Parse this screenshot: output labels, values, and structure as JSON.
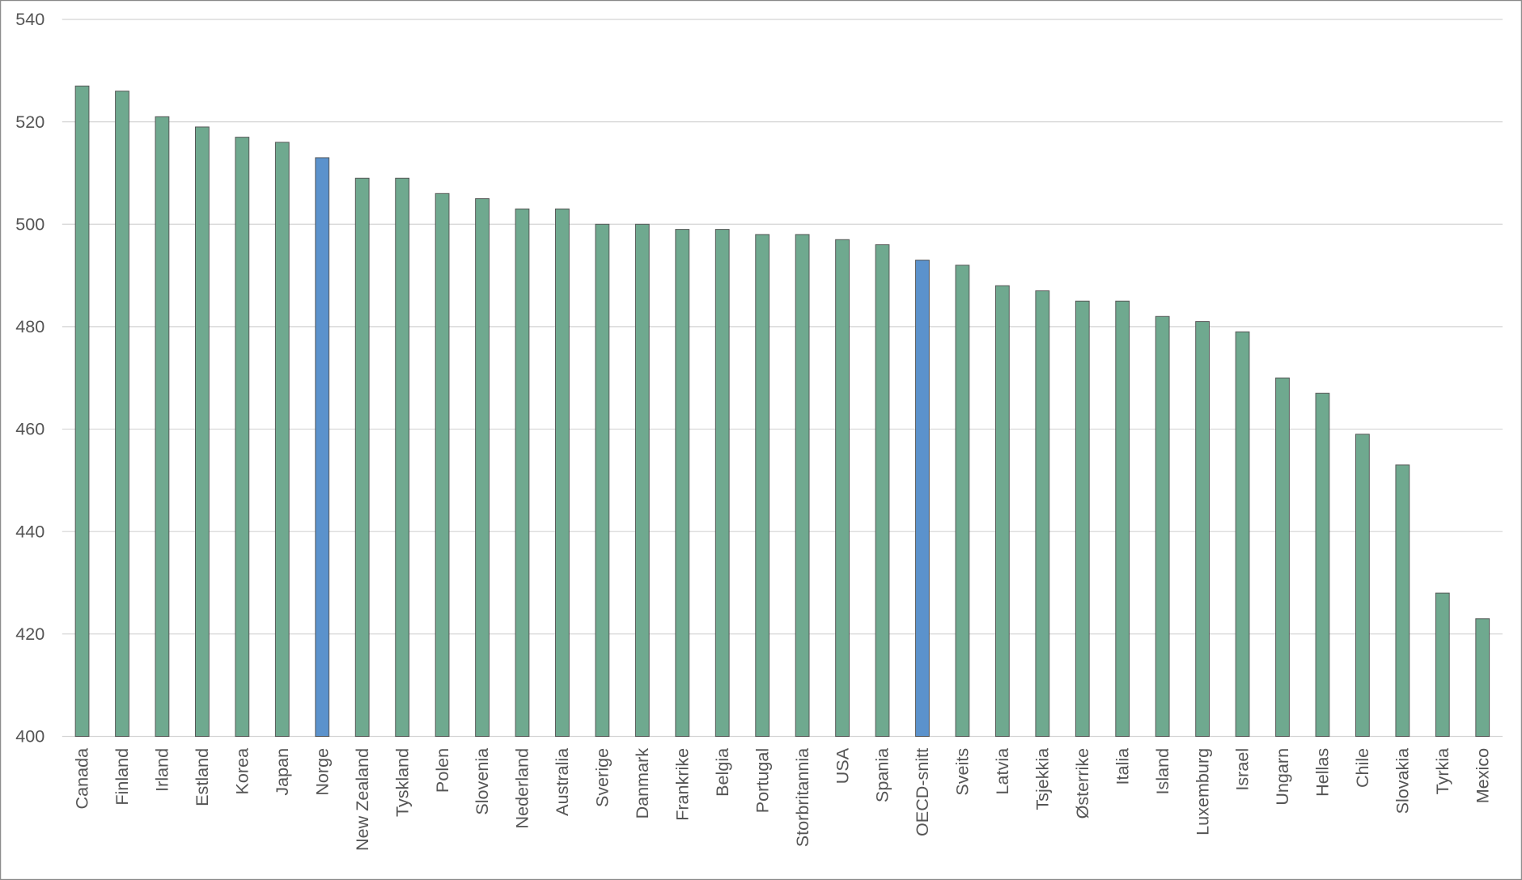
{
  "chart_data": {
    "type": "bar",
    "categories": [
      "Canada",
      "Finland",
      "Irland",
      "Estland",
      "Korea",
      "Japan",
      "Norge",
      "New Zealand",
      "Tyskland",
      "Polen",
      "Slovenia",
      "Nederland",
      "Australia",
      "Sverige",
      "Danmark",
      "Frankrike",
      "Belgia",
      "Portugal",
      "Storbritannia",
      "USA",
      "Spania",
      "OECD-snitt",
      "Sveits",
      "Latvia",
      "Tsjekkia",
      "Østerrike",
      "Italia",
      "Island",
      "Luxemburg",
      "Israel",
      "Ungarn",
      "Hellas",
      "Chile",
      "Slovakia",
      "Tyrkia",
      "Mexico"
    ],
    "values": [
      527,
      526,
      521,
      519,
      517,
      516,
      513,
      509,
      509,
      506,
      505,
      503,
      503,
      500,
      500,
      499,
      499,
      498,
      498,
      497,
      496,
      493,
      492,
      488,
      487,
      485,
      485,
      482,
      481,
      479,
      470,
      467,
      459,
      453,
      428,
      423
    ],
    "colors": [
      "#6fa98f",
      "#6fa98f",
      "#6fa98f",
      "#6fa98f",
      "#6fa98f",
      "#6fa98f",
      "#5b92cc",
      "#6fa98f",
      "#6fa98f",
      "#6fa98f",
      "#6fa98f",
      "#6fa98f",
      "#6fa98f",
      "#6fa98f",
      "#6fa98f",
      "#6fa98f",
      "#6fa98f",
      "#6fa98f",
      "#6fa98f",
      "#6fa98f",
      "#6fa98f",
      "#5b92cc",
      "#6fa98f",
      "#6fa98f",
      "#6fa98f",
      "#6fa98f",
      "#6fa98f",
      "#6fa98f",
      "#6fa98f",
      "#6fa98f",
      "#6fa98f",
      "#6fa98f",
      "#6fa98f",
      "#6fa98f",
      "#6fa98f",
      "#6fa98f"
    ],
    "ylim": [
      400,
      540
    ],
    "yticks": [
      400,
      420,
      440,
      460,
      480,
      500,
      520,
      540
    ],
    "grid": true
  }
}
